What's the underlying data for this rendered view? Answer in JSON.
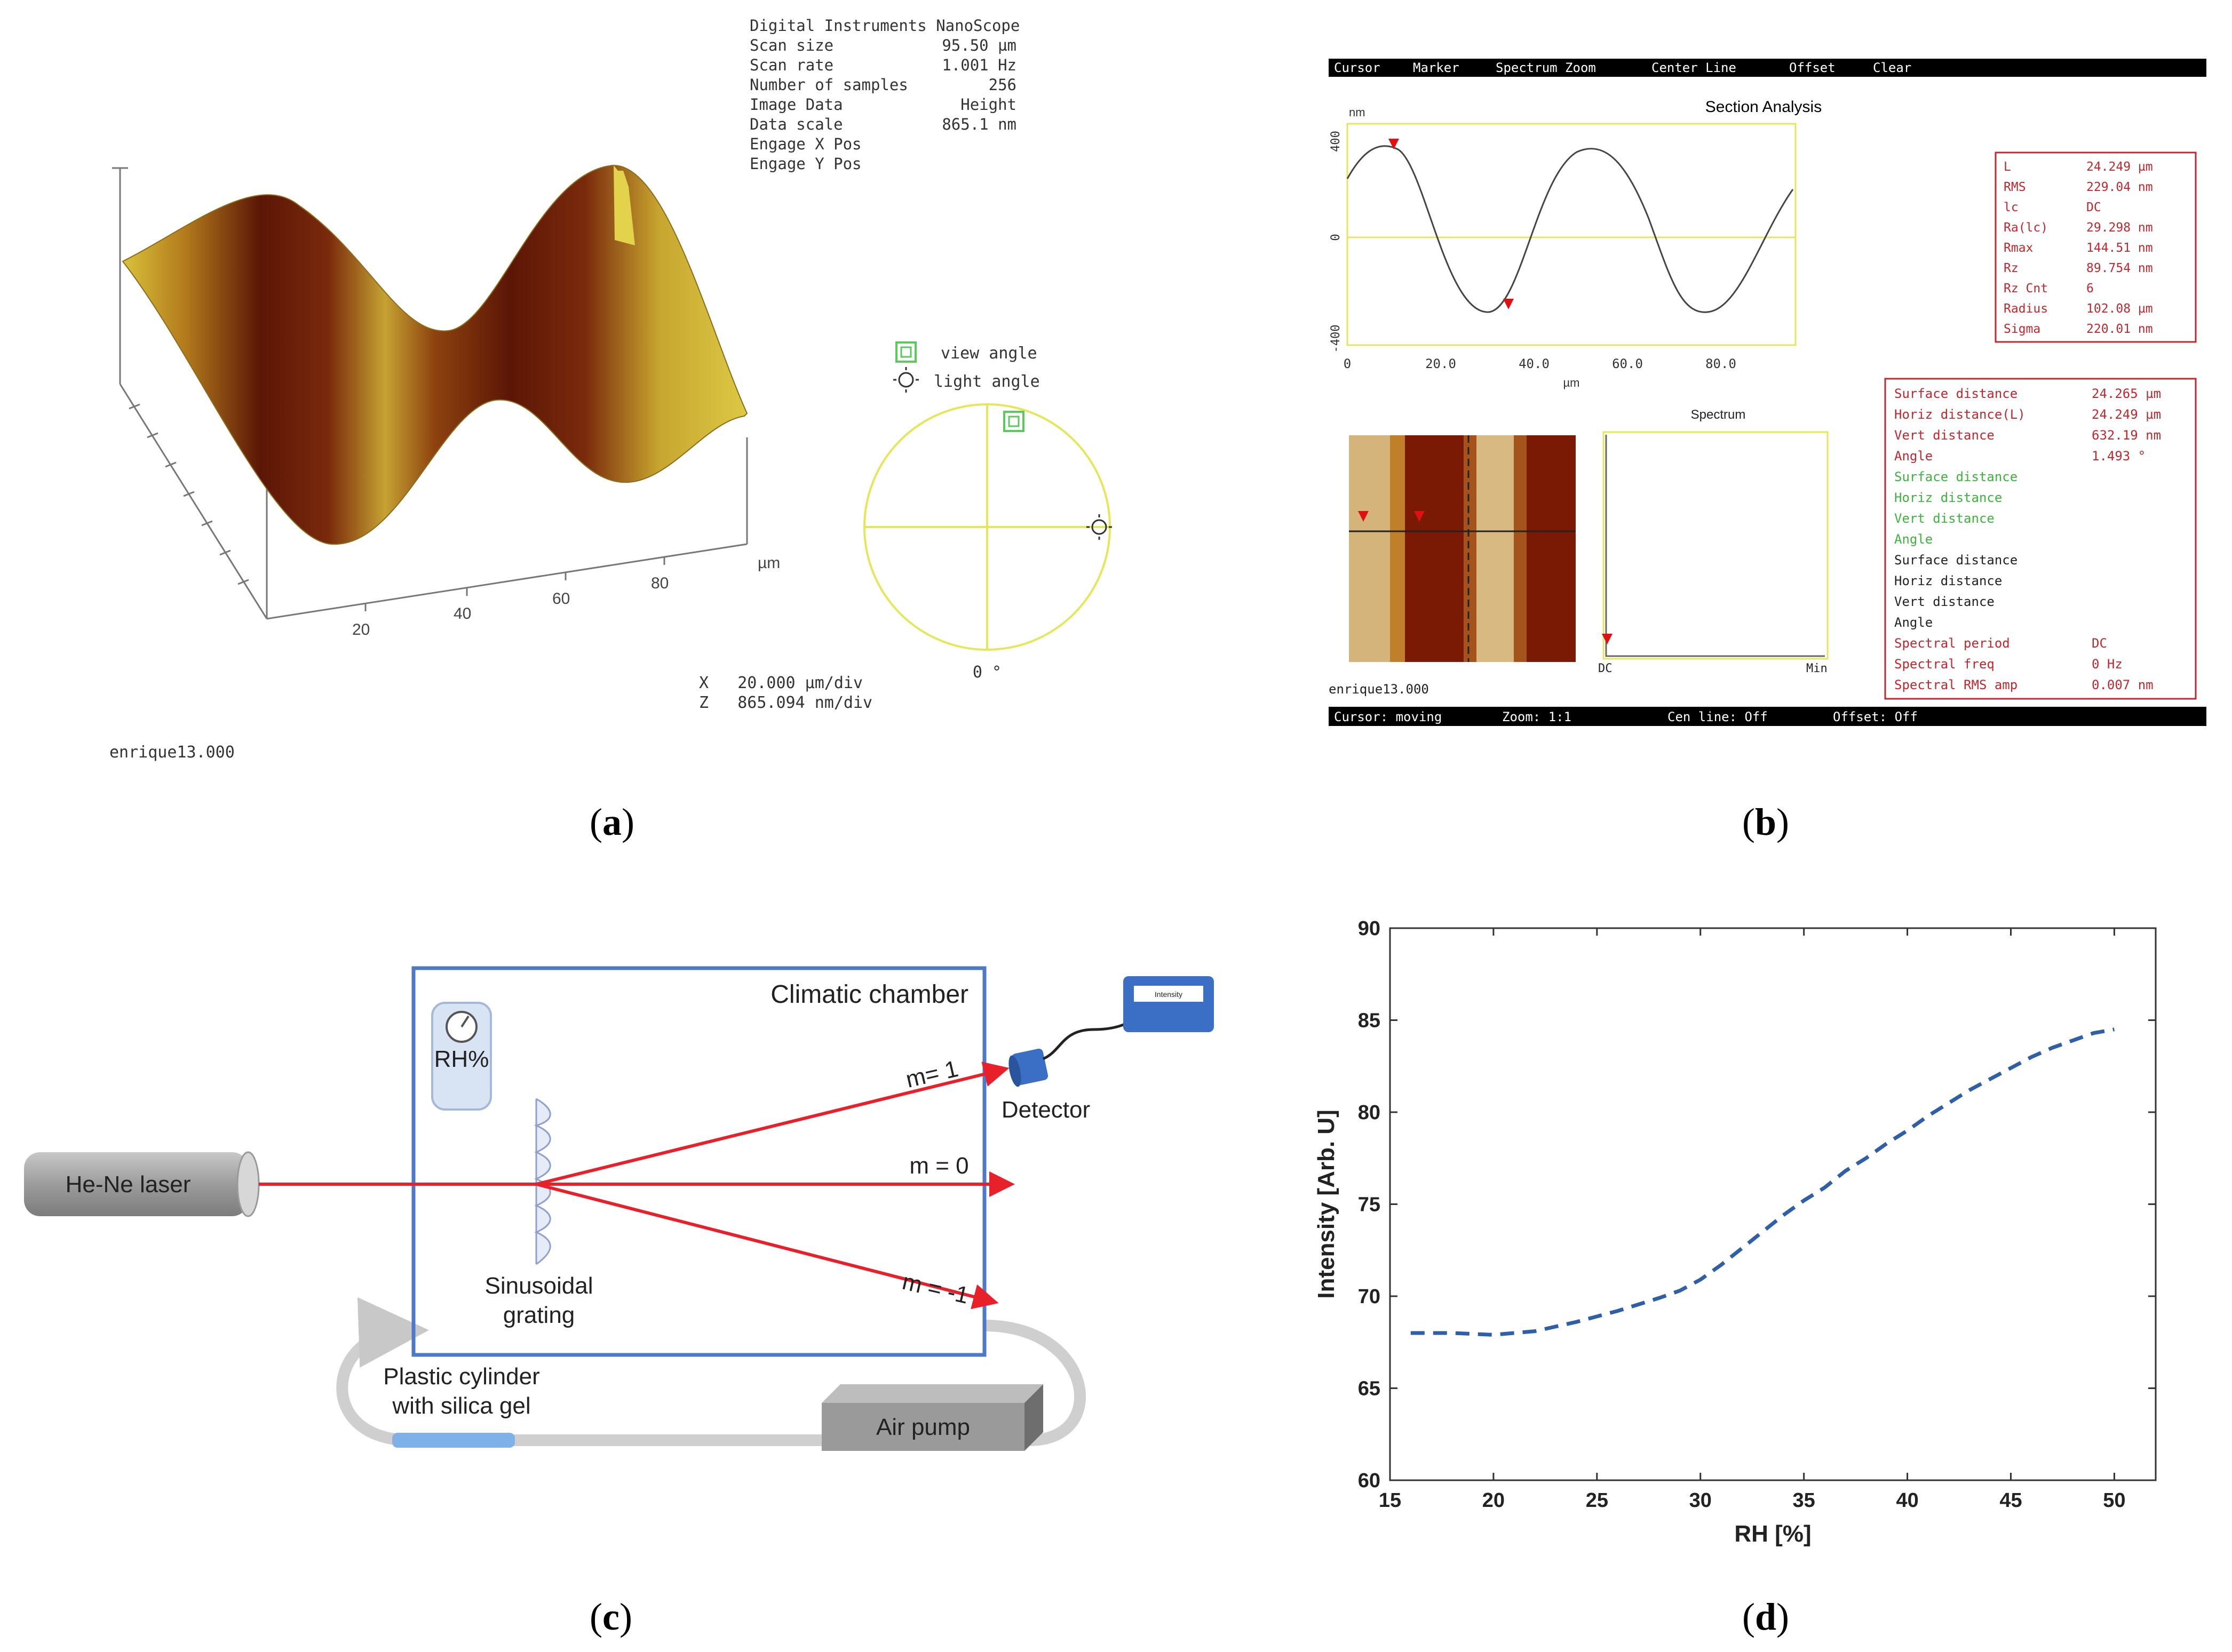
{
  "panel_labels": [
    "a",
    "b",
    "c",
    "d"
  ],
  "panel_a": {
    "meta": [
      [
        "Digital Instruments NanoScope",
        ""
      ],
      [
        "Scan size",
        "95.50 µm"
      ],
      [
        "Scan rate",
        "1.001 Hz"
      ],
      [
        "Number of samples",
        "256"
      ],
      [
        "Image Data",
        "Height"
      ],
      [
        "Data scale",
        "865.1 nm"
      ],
      [
        "Engage X Pos",
        ""
      ],
      [
        "Engage Y Pos",
        ""
      ]
    ],
    "axis_ticks": [
      "20",
      "40",
      "60",
      "80"
    ],
    "axis_unit": "µm",
    "legend_view": "view angle",
    "legend_light": "light angle",
    "angle_label": "0 °",
    "scale_x": "X   20.000 µm/div",
    "scale_z": "Z   865.094 nm/div",
    "filename": "enrique13.000",
    "colors": {
      "surface_dark": "#6b1a08",
      "surface_light": "#d4c13a",
      "circle": "#e6e65a",
      "marker": "#5cc95c"
    }
  },
  "panel_b": {
    "menu": [
      "Cursor",
      "Marker",
      "Spectrum Zoom",
      "Center Line",
      "Offset",
      "Clear"
    ],
    "title": "Section Analysis",
    "y_unit": "nm",
    "y_ticks": [
      "400",
      "0",
      "-400"
    ],
    "x_ticks": [
      "0",
      "20.0",
      "40.0",
      "60.0",
      "80.0"
    ],
    "x_unit": "µm",
    "stats": [
      [
        "L",
        "24.249 µm"
      ],
      [
        "RMS",
        "229.04 nm"
      ],
      [
        "lc",
        "DC"
      ],
      [
        "Ra(lc)",
        "29.298 nm"
      ],
      [
        "Rmax",
        "144.51 nm"
      ],
      [
        "Rz",
        "89.754 nm"
      ],
      [
        "Rz Cnt",
        "6"
      ],
      [
        "Radius",
        "102.08 µm"
      ],
      [
        "Sigma",
        "220.01 nm"
      ]
    ],
    "spectrum_title": "Spectrum",
    "spectrum_x": [
      "DC",
      "Min"
    ],
    "filename": "enrique13.000",
    "measurements": [
      [
        "Surface distance",
        "24.265 µm",
        "red"
      ],
      [
        "Horiz distance(L)",
        "24.249 µm",
        "red"
      ],
      [
        "Vert distance",
        "632.19 nm",
        "red"
      ],
      [
        "Angle",
        "1.493 °",
        "red"
      ],
      [
        "Surface distance",
        "",
        "green"
      ],
      [
        "Horiz distance",
        "",
        "green"
      ],
      [
        "Vert distance",
        "",
        "green"
      ],
      [
        "Angle",
        "",
        "green"
      ],
      [
        "Surface distance",
        "",
        "black"
      ],
      [
        "Horiz distance",
        "",
        "black"
      ],
      [
        "Vert distance",
        "",
        "black"
      ],
      [
        "Angle",
        "",
        "black"
      ],
      [
        "Spectral period",
        "DC",
        "red"
      ],
      [
        "Spectral freq",
        "0 Hz",
        "red"
      ],
      [
        "Spectral RMS amp",
        "0.007 nm",
        "red"
      ]
    ],
    "status": [
      "Cursor: moving",
      "Zoom: 1:1",
      "Cen line: Off",
      "Offset: Off"
    ],
    "colors": {
      "red": "#c0282d",
      "green": "#3cb43c",
      "black": "#222222",
      "yellow": "#e6e65a"
    }
  },
  "panel_c": {
    "chamber": "Climatic chamber",
    "rh": "RH%",
    "detector": "Detector",
    "display": "Intensity",
    "laser": "He-Ne laser",
    "orders": [
      "m= 1",
      "m = 0",
      "m = -1"
    ],
    "grating": [
      "Sinusoidal",
      "grating"
    ],
    "cylinder": [
      "Plastic cylinder",
      "with silica gel"
    ],
    "pump": "Air pump",
    "colors": {
      "box": "#4d79c8",
      "beam": "#e8202a",
      "device": "#3b6fc6"
    }
  },
  "chart_data": {
    "type": "line",
    "title": "",
    "xlabel": "RH [%]",
    "ylabel": "Intensity [Arb. U]",
    "xlim": [
      15,
      52
    ],
    "ylim": [
      60,
      90
    ],
    "xticks": [
      15,
      20,
      25,
      30,
      35,
      40,
      45,
      50
    ],
    "yticks": [
      60,
      65,
      70,
      75,
      80,
      85,
      90
    ],
    "series": [
      {
        "name": "Intensity",
        "style": "dashed",
        "color": "#2f5fa8",
        "x": [
          16,
          18,
          20,
          22,
          24,
          26,
          28,
          29,
          30,
          31,
          32,
          33,
          34,
          35,
          36,
          37,
          38,
          39,
          40,
          41,
          42,
          43,
          44,
          45,
          46,
          47,
          48,
          49,
          50
        ],
        "y": [
          68.0,
          68.0,
          67.9,
          68.1,
          68.6,
          69.2,
          69.9,
          70.3,
          70.9,
          71.7,
          72.6,
          73.5,
          74.4,
          75.2,
          75.9,
          76.8,
          77.5,
          78.3,
          79.0,
          79.8,
          80.5,
          81.2,
          81.8,
          82.4,
          83.0,
          83.5,
          83.9,
          84.3,
          84.5
        ]
      }
    ]
  }
}
